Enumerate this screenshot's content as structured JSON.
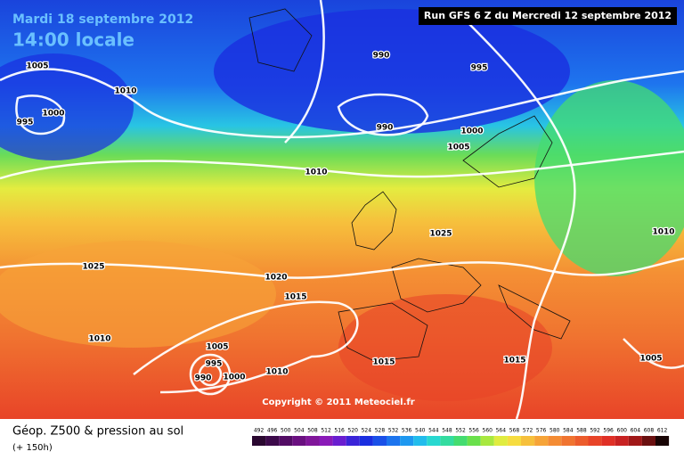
{
  "header": {
    "date": "Mardi 18 septembre 2012",
    "time": "14:00 locale",
    "run": "Run GFS 6 Z du Mercredi 12 septembre 2012"
  },
  "isobar_labels": [
    "1005",
    "1010",
    "1000",
    "995",
    "990",
    "995",
    "990",
    "1000",
    "1005",
    "1010",
    "1025",
    "1010",
    "1025",
    "1020",
    "1015",
    "1010",
    "1005",
    "995",
    "990",
    "1000",
    "1010",
    "1015",
    "1015",
    "1005"
  ],
  "copyright": "Copyright © 2011 Meteociel.fr",
  "footer": {
    "title": "Géop. Z500 & pression au sol",
    "lead": "(+ 150h)"
  },
  "scale": [
    {
      "label": "492",
      "color": "#2a0830"
    },
    {
      "label": "496",
      "color": "#3c0a4a"
    },
    {
      "label": "500",
      "color": "#520c64"
    },
    {
      "label": "504",
      "color": "#6a1080"
    },
    {
      "label": "508",
      "color": "#80169a"
    },
    {
      "label": "512",
      "color": "#8a1ab8"
    },
    {
      "label": "516",
      "color": "#6a1ed0"
    },
    {
      "label": "520",
      "color": "#3a24d8"
    },
    {
      "label": "524",
      "color": "#1a2ee0"
    },
    {
      "label": "528",
      "color": "#1a50e8"
    },
    {
      "label": "532",
      "color": "#1c74ee"
    },
    {
      "label": "536",
      "color": "#1e98f0"
    },
    {
      "label": "540",
      "color": "#22bcec"
    },
    {
      "label": "544",
      "color": "#28d8d0"
    },
    {
      "label": "548",
      "color": "#34dca0"
    },
    {
      "label": "552",
      "color": "#44dc70"
    },
    {
      "label": "556",
      "color": "#6ae04c"
    },
    {
      "label": "560",
      "color": "#a8e840"
    },
    {
      "label": "564",
      "color": "#e0ec40"
    },
    {
      "label": "568",
      "color": "#f6dc40"
    },
    {
      "label": "572",
      "color": "#f6c03c"
    },
    {
      "label": "576",
      "color": "#f6a438"
    },
    {
      "label": "580",
      "color": "#f48c34"
    },
    {
      "label": "584",
      "color": "#f07430"
    },
    {
      "label": "588",
      "color": "#ec5c2c"
    },
    {
      "label": "592",
      "color": "#e84428"
    },
    {
      "label": "596",
      "color": "#e03026"
    },
    {
      "label": "600",
      "color": "#c82222"
    },
    {
      "label": "604",
      "color": "#a01818"
    },
    {
      "label": "608",
      "color": "#6a1010"
    },
    {
      "label": "612",
      "color": "#180404"
    }
  ]
}
